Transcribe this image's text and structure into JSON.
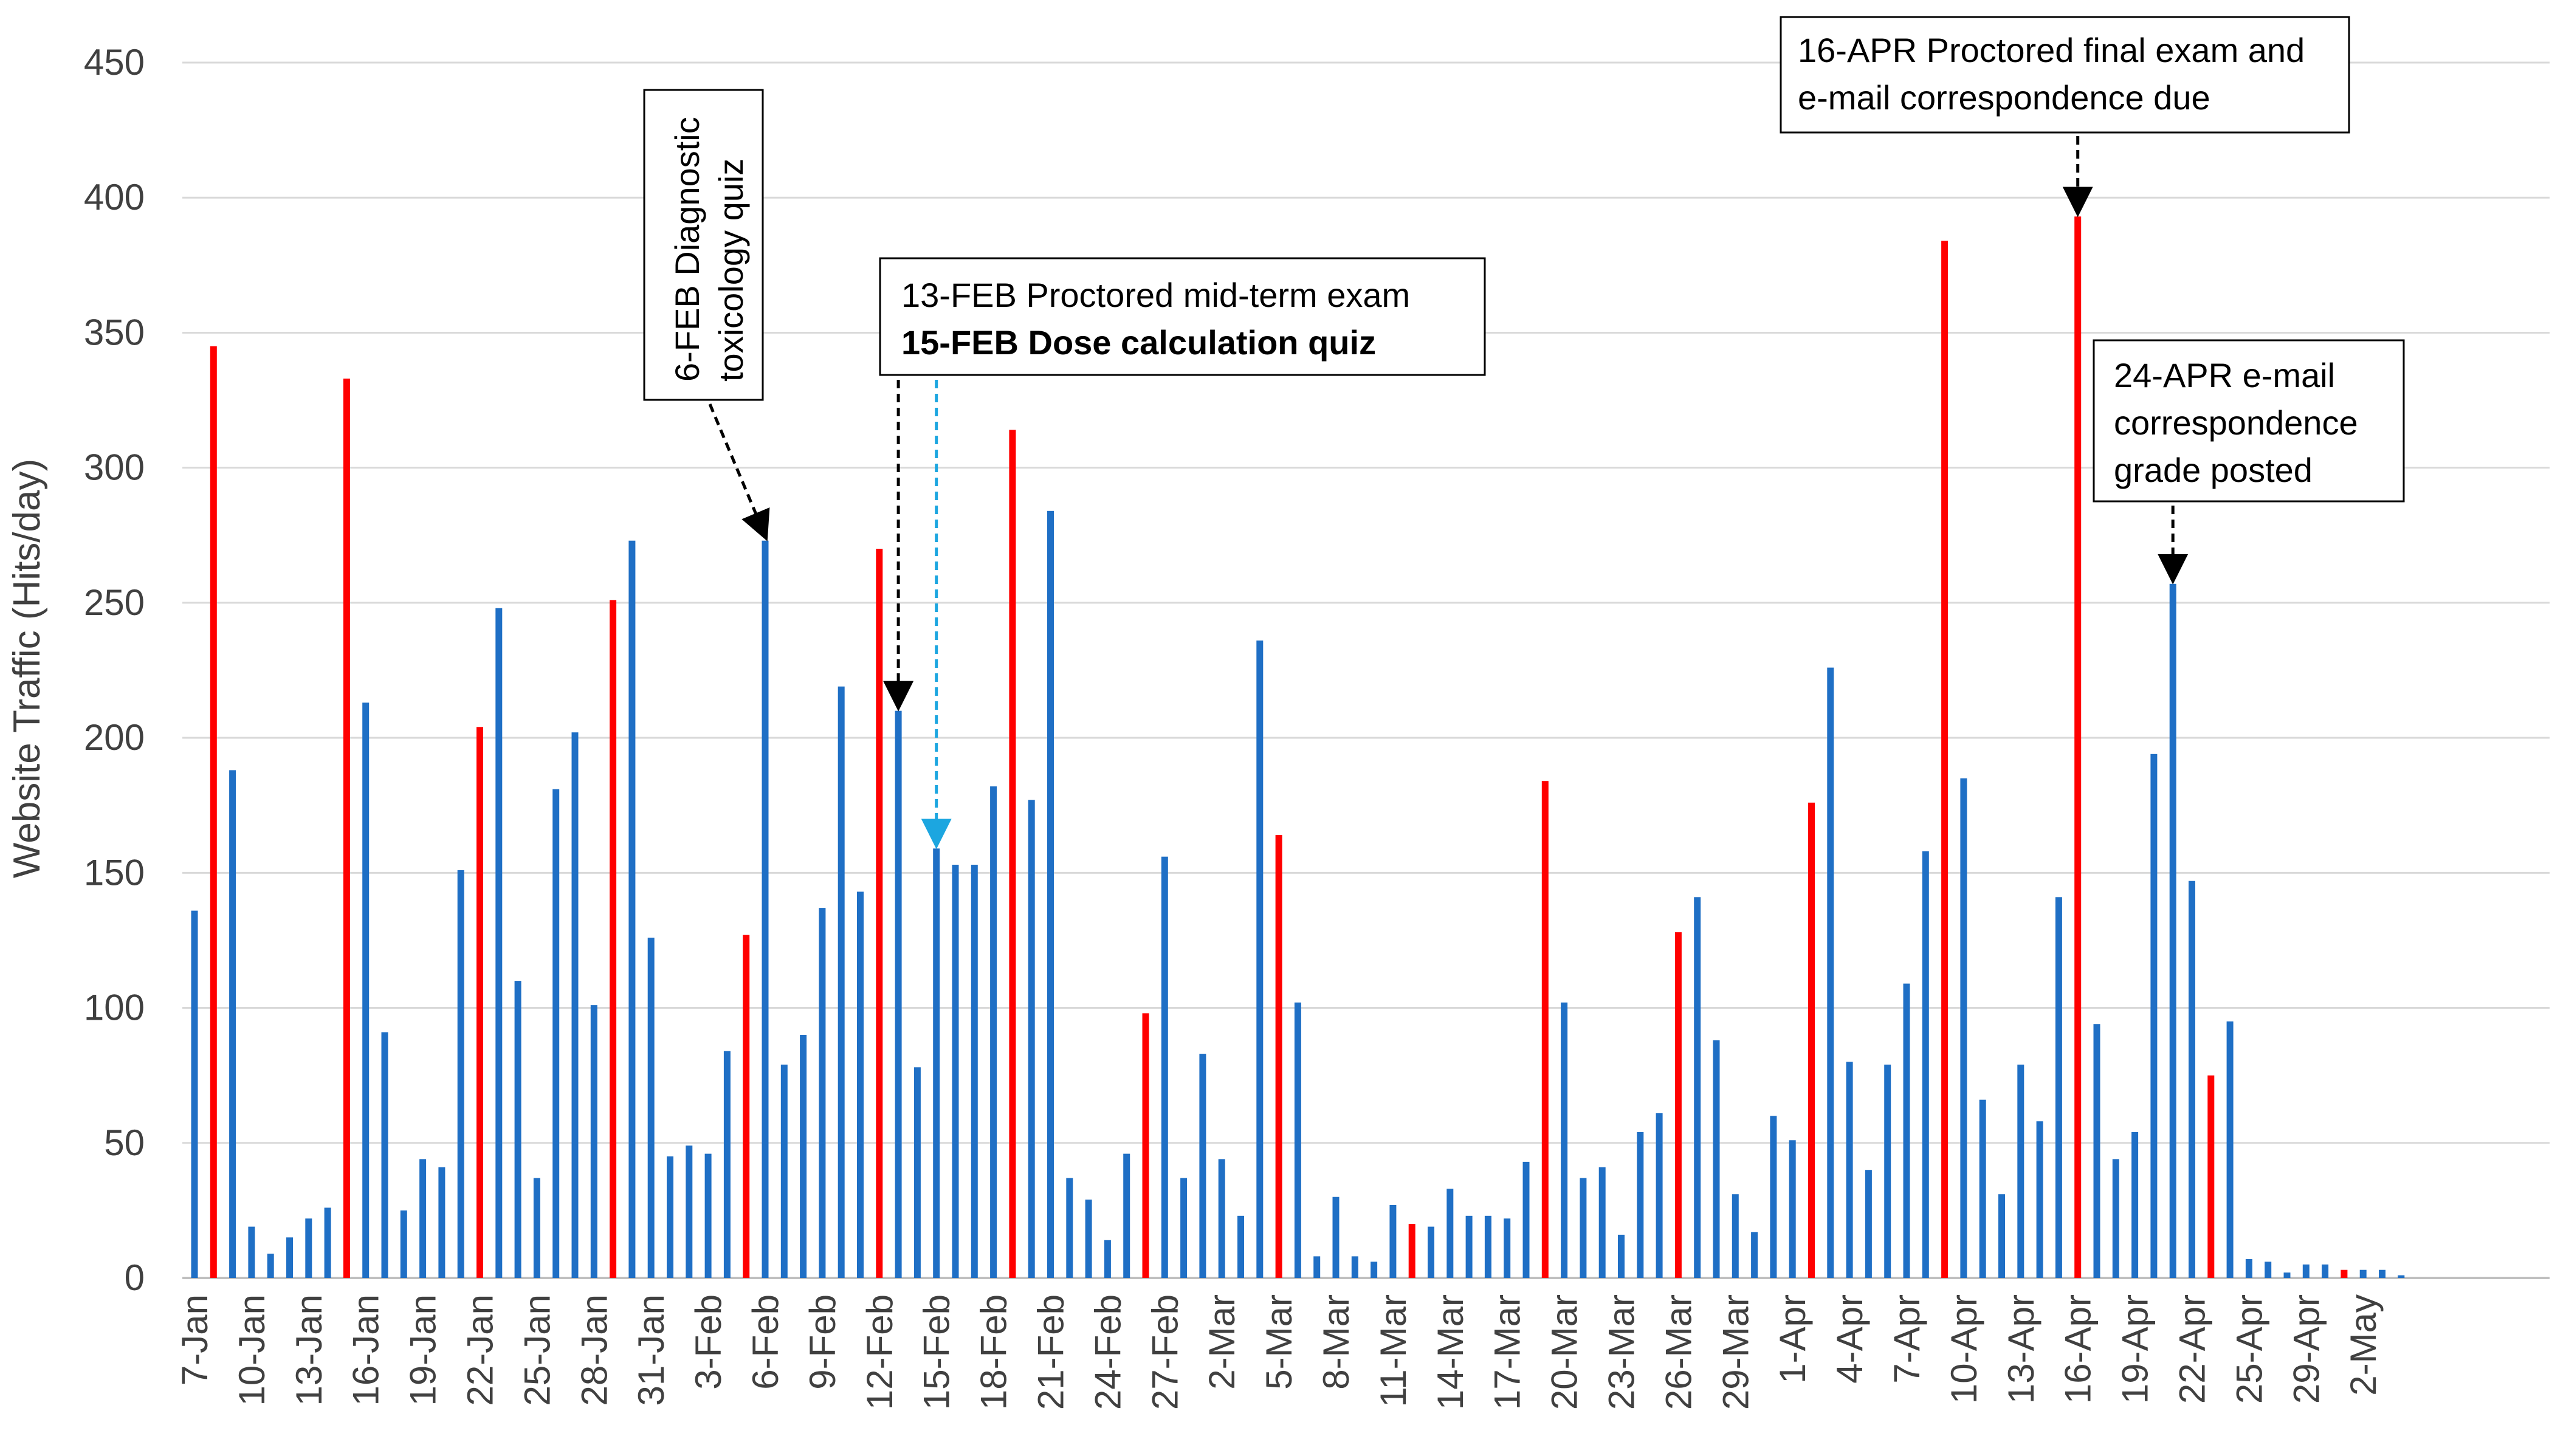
{
  "chart_data": {
    "type": "bar",
    "title": "",
    "xlabel": "",
    "ylabel": "Website Traffic (Hits/day)",
    "ylim": [
      0,
      450
    ],
    "yticks": [
      0,
      50,
      100,
      150,
      200,
      250,
      300,
      350,
      400,
      450
    ],
    "grid": true,
    "colors": {
      "normal": "#1f6fc5",
      "highlight": "#ff0000",
      "quiz_arrow": "#1ca6e0",
      "quiz_text": "#19a7df"
    },
    "start_index_of_tick_labels": 0,
    "tick_every": 3,
    "tick_labels": [
      "7-Jan",
      "10-Jan",
      "13-Jan",
      "16-Jan",
      "19-Jan",
      "22-Jan",
      "25-Jan",
      "28-Jan",
      "31-Jan",
      "3-Feb",
      "6-Feb",
      "9-Feb",
      "12-Feb",
      "15-Feb",
      "18-Feb",
      "21-Feb",
      "24-Feb",
      "27-Feb",
      "2-Mar",
      "5-Mar",
      "8-Mar",
      "11-Mar",
      "14-Mar",
      "17-Mar",
      "20-Mar",
      "23-Mar",
      "26-Mar",
      "29-Mar",
      "1-Apr",
      "4-Apr",
      "7-Apr",
      "10-Apr",
      "13-Apr",
      "16-Apr",
      "19-Apr",
      "22-Apr",
      "25-Apr",
      "29-Apr",
      "2-May"
    ],
    "values": [
      136,
      345,
      188,
      19,
      9,
      15,
      22,
      26,
      333,
      213,
      91,
      25,
      44,
      41,
      151,
      204,
      248,
      110,
      37,
      181,
      202,
      101,
      251,
      273,
      126,
      45,
      49,
      46,
      84,
      127,
      273,
      79,
      90,
      137,
      219,
      143,
      270,
      210,
      78,
      159,
      153,
      153,
      182,
      314,
      177,
      284,
      37,
      29,
      14,
      46,
      98,
      156,
      37,
      83,
      44,
      23,
      236,
      164,
      102,
      8,
      30,
      8,
      6,
      27,
      20,
      19,
      33,
      23,
      23,
      22,
      43,
      184,
      102,
      37,
      41,
      16,
      54,
      61,
      128,
      141,
      88,
      31,
      17,
      60,
      51,
      176,
      226,
      80,
      40,
      79,
      109,
      158,
      384,
      185,
      66,
      31,
      79,
      58,
      141,
      393,
      94,
      44,
      54,
      194,
      257,
      147,
      75,
      95,
      7,
      6,
      2,
      5,
      5,
      3,
      3,
      3,
      1
    ],
    "highlight_indices": [
      1,
      8,
      15,
      22,
      29,
      36,
      43,
      50,
      57,
      64,
      71,
      78,
      85,
      92,
      99,
      106,
      113
    ],
    "annotations": [
      {
        "id": "feb6",
        "lines": [
          "6-FEB Diagnostic",
          "toxicology quiz"
        ],
        "target_index": 30,
        "orientation": "vertical"
      },
      {
        "id": "feb13",
        "lines": [
          "13-FEB Proctored mid-term exam"
        ],
        "target_index": 37,
        "orientation": "horizontal"
      },
      {
        "id": "feb15",
        "lines": [
          "15-FEB Dose calculation quiz"
        ],
        "target_index": 39,
        "orientation": "horizontal"
      },
      {
        "id": "apr16",
        "lines": [
          "16-APR Proctored final exam and",
          "e-mail correspondence due"
        ],
        "target_index": 99,
        "orientation": "horizontal"
      },
      {
        "id": "apr24",
        "lines": [
          "24-APR e-mail",
          "correspondence",
          "grade posted"
        ],
        "target_index": 104,
        "orientation": "horizontal"
      }
    ]
  }
}
